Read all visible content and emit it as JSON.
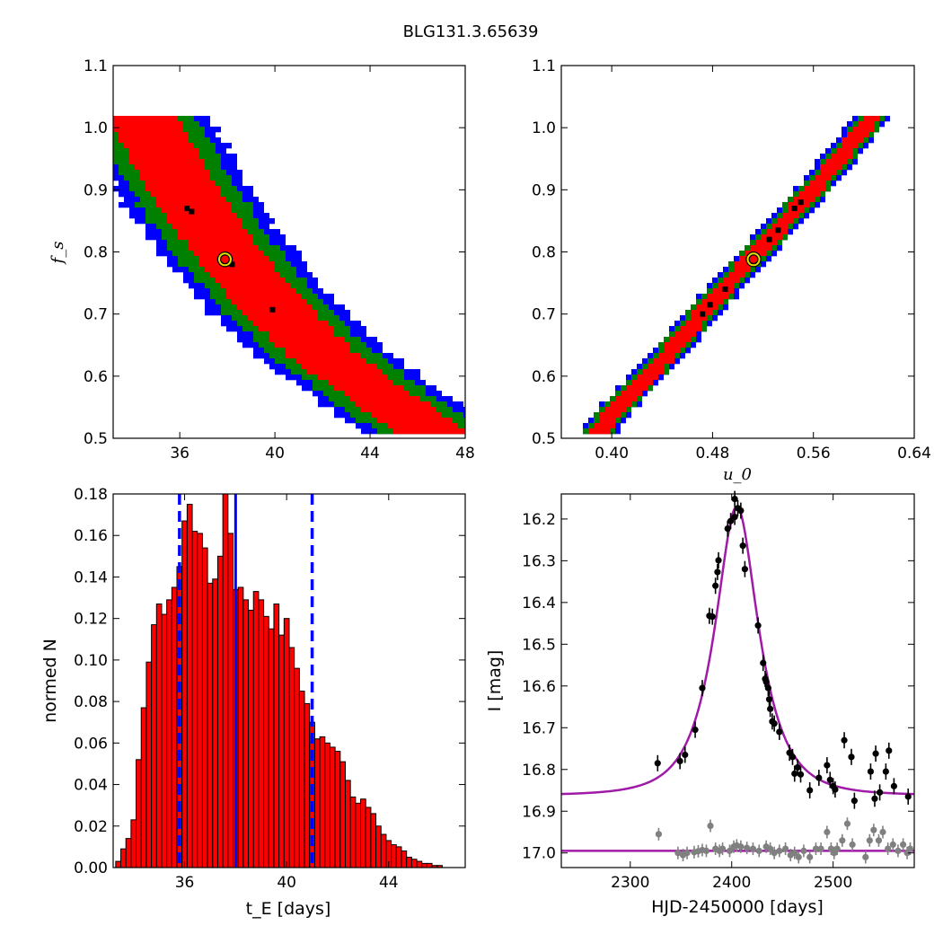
{
  "figure": {
    "title": "BLG131.3.65639"
  },
  "chart_data": [
    {
      "type": "heatmap",
      "panel": "top-left",
      "xlabel": "",
      "ylabel": "f_s",
      "xlim": [
        33.2,
        48
      ],
      "ylim": [
        0.5,
        1.1
      ],
      "xticks": [
        "36",
        "40",
        "44",
        "48"
      ],
      "yticks": [
        "0.5",
        "0.6",
        "0.7",
        "0.8",
        "0.9",
        "1.0",
        "1.1"
      ],
      "best_fit": {
        "x": 37.9,
        "y": 0.788
      },
      "band": {
        "centerline": [
          [
            34.4,
            1.02
          ],
          [
            35.5,
            0.945
          ],
          [
            37.0,
            0.85
          ],
          [
            38.5,
            0.775
          ],
          [
            40.0,
            0.71
          ],
          [
            42.0,
            0.635
          ],
          [
            44.0,
            0.58
          ],
          [
            45.8,
            0.53
          ],
          [
            46.8,
            0.505
          ]
        ],
        "half_widths_red_green_blue": [
          0.022,
          0.033,
          0.042
        ]
      },
      "black_cells": [
        [
          36.3,
          0.87
        ],
        [
          36.5,
          0.865
        ],
        [
          38.2,
          0.78
        ],
        [
          39.9,
          0.707
        ]
      ],
      "colors": {
        "core": "#ff0000",
        "mid": "#008000",
        "outer": "#0000ff"
      }
    },
    {
      "type": "heatmap",
      "panel": "top-right",
      "xlabel": "u_0",
      "ylabel": "",
      "xlim": [
        0.36,
        0.64
      ],
      "ylim": [
        0.5,
        1.1
      ],
      "xticks": [
        "0.40",
        "0.48",
        "0.56",
        "0.64"
      ],
      "yticks": [
        "0.5",
        "0.6",
        "0.7",
        "0.8",
        "0.9",
        "1.0",
        "1.1"
      ],
      "best_fit": {
        "x": 0.5125,
        "y": 0.788
      },
      "band": {
        "centerline": [
          [
            0.388,
            0.505
          ],
          [
            0.4,
            0.54
          ],
          [
            0.44,
            0.625
          ],
          [
            0.48,
            0.72
          ],
          [
            0.52,
            0.81
          ],
          [
            0.56,
            0.9
          ],
          [
            0.6,
            1.0
          ],
          [
            0.608,
            1.02
          ]
        ],
        "half_widths_red_green_blue": [
          0.006,
          0.009,
          0.0115
        ]
      },
      "black_cells": [
        [
          0.472,
          0.7
        ],
        [
          0.478,
          0.715
        ],
        [
          0.49,
          0.74
        ],
        [
          0.525,
          0.82
        ],
        [
          0.532,
          0.835
        ],
        [
          0.545,
          0.87
        ],
        [
          0.55,
          0.88
        ]
      ],
      "colors": {
        "core": "#ff0000",
        "mid": "#008000",
        "outer": "#0000ff"
      }
    },
    {
      "type": "bar",
      "panel": "bottom-left",
      "xlabel": "t_E [days]",
      "ylabel": "normed N",
      "xlim": [
        33.2,
        47
      ],
      "ylim": [
        0,
        0.18
      ],
      "xticks": [
        "36",
        "40",
        "44"
      ],
      "yticks": [
        "0.00",
        "0.02",
        "0.04",
        "0.06",
        "0.08",
        "0.10",
        "0.12",
        "0.14",
        "0.16",
        "0.18"
      ],
      "bin_start": 33.3,
      "bin_width": 0.2,
      "values": [
        0.003,
        0.009,
        0.014,
        0.023,
        0.052,
        0.077,
        0.099,
        0.117,
        0.127,
        0.122,
        0.129,
        0.135,
        0.145,
        0.167,
        0.175,
        0.162,
        0.161,
        0.154,
        0.137,
        0.139,
        0.15,
        0.182,
        0.161,
        0.134,
        0.135,
        0.129,
        0.124,
        0.133,
        0.129,
        0.121,
        0.115,
        0.127,
        0.112,
        0.12,
        0.106,
        0.096,
        0.085,
        0.079,
        0.07,
        0.062,
        0.063,
        0.06,
        0.058,
        0.056,
        0.051,
        0.042,
        0.034,
        0.031,
        0.033,
        0.029,
        0.026,
        0.02,
        0.016,
        0.013,
        0.011,
        0.01,
        0.008,
        0.005,
        0.004,
        0.003,
        0.002,
        0.002,
        0.001,
        0.001
      ],
      "median_line": 38.0,
      "interval_lines": [
        35.8,
        41.0
      ],
      "colors": {
        "bar": "#ff0000",
        "median": "#0000ff",
        "interval": "#0000ff"
      }
    },
    {
      "type": "scatter",
      "panel": "bottom-right",
      "xlabel": "HJD-2450000 [days]",
      "ylabel": "I [mag]",
      "xlim": [
        2232,
        2580
      ],
      "ylim": [
        17.035,
        16.14
      ],
      "xticks": [
        "2300",
        "2400",
        "2500"
      ],
      "yticks": [
        "16.2",
        "16.3",
        "16.4",
        "16.5",
        "16.6",
        "16.7",
        "16.8",
        "16.9",
        "17.0"
      ],
      "model": {
        "t0": 2405,
        "peak_mag": 16.17,
        "base_mag": 16.862,
        "u0": 0.5125,
        "tE": 37.9,
        "fs": 0.788
      },
      "baseline_line": 16.995,
      "series": [
        {
          "color": "#000000",
          "x": [
            2327,
            2349,
            2354,
            2364,
            2371,
            2378,
            2381,
            2384,
            2386,
            2387,
            2396,
            2399,
            2403,
            2403,
            2406,
            2409,
            2411,
            2413,
            2426,
            2431,
            2433,
            2434,
            2436,
            2437,
            2438,
            2440,
            2442,
            2447,
            2457,
            2460,
            2462,
            2465,
            2468,
            2477,
            2486,
            2494,
            2497,
            2500,
            2502,
            2511,
            2518,
            2521,
            2537,
            2541,
            2542,
            2546,
            2552,
            2555,
            2560,
            2574
          ],
          "y": [
            16.785,
            16.78,
            16.765,
            16.705,
            16.605,
            16.432,
            16.434,
            16.36,
            16.327,
            16.299,
            16.223,
            16.205,
            16.195,
            16.152,
            16.174,
            16.18,
            16.264,
            16.32,
            16.455,
            16.545,
            16.583,
            16.59,
            16.605,
            16.632,
            16.655,
            16.685,
            16.69,
            16.71,
            16.76,
            16.77,
            16.81,
            16.795,
            16.812,
            16.85,
            16.82,
            16.79,
            16.825,
            16.84,
            16.848,
            16.73,
            16.77,
            16.875,
            16.805,
            16.87,
            16.762,
            16.855,
            16.805,
            16.755,
            16.84,
            16.865
          ]
        },
        {
          "color": "#808080",
          "x": [
            2328,
            2347,
            2352,
            2356,
            2363,
            2367,
            2371,
            2375,
            2379,
            2384,
            2388,
            2391,
            2398,
            2402,
            2405,
            2409,
            2415,
            2421,
            2427,
            2434,
            2438,
            2442,
            2447,
            2453,
            2458,
            2462,
            2466,
            2471,
            2477,
            2483,
            2488,
            2494,
            2498,
            2501,
            2504,
            2509,
            2514,
            2519,
            2532,
            2536,
            2540,
            2545,
            2549,
            2554,
            2559,
            2564,
            2569,
            2573,
            2576
          ],
          "y": [
            16.955,
            17.0,
            17.005,
            17.0,
            16.998,
            16.996,
            16.993,
            16.995,
            16.935,
            16.99,
            16.995,
            16.99,
            16.995,
            16.985,
            16.982,
            16.985,
            16.988,
            16.99,
            16.995,
            16.985,
            16.99,
            17.0,
            16.995,
            16.99,
            17.005,
            17.0,
            17.01,
            16.995,
            17.01,
            16.99,
            16.99,
            16.95,
            16.99,
            17.0,
            16.99,
            16.97,
            16.93,
            16.98,
            17.01,
            16.97,
            16.945,
            16.97,
            16.95,
            16.99,
            16.98,
            16.995,
            16.98,
            17.0,
            16.99
          ]
        }
      ],
      "colors": {
        "model": "#a01aa8",
        "detected": "#000000",
        "other": "#808080"
      }
    }
  ]
}
